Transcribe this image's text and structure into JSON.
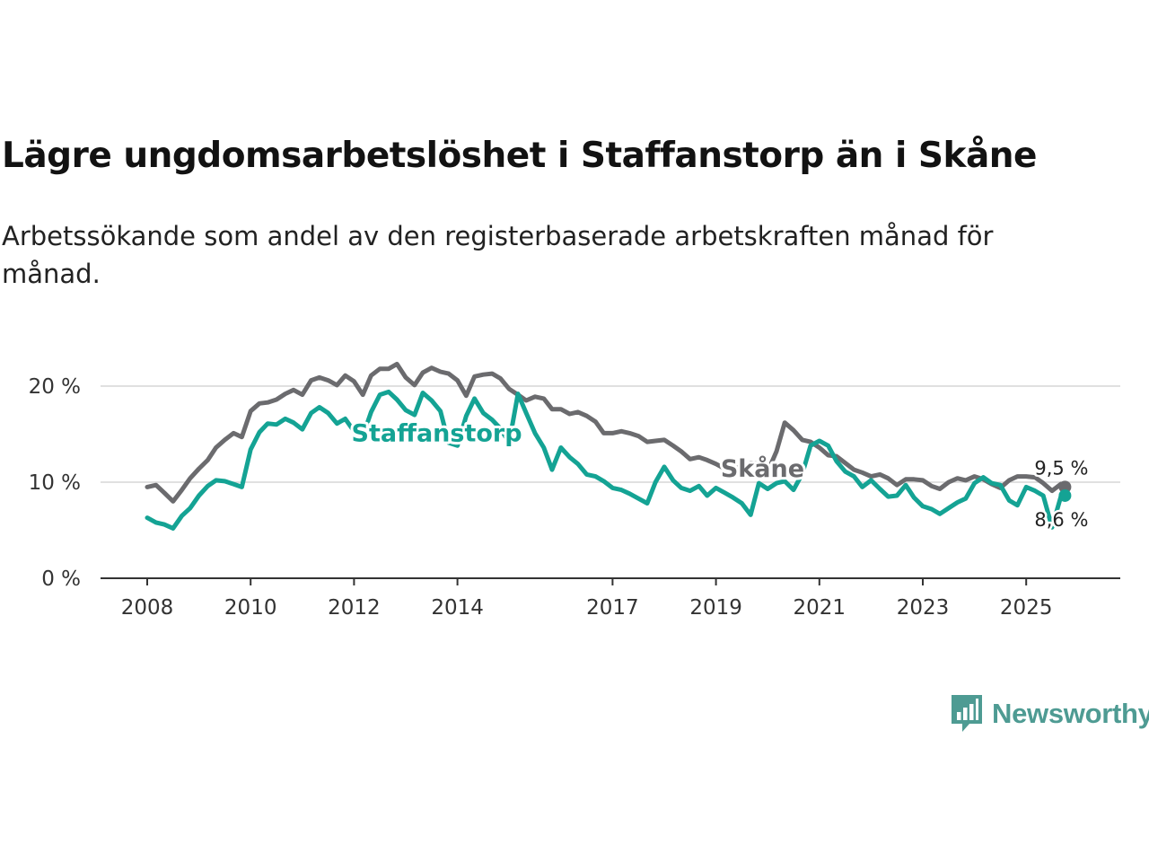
{
  "header": {
    "title": "Lägre ungdomsarbetslöshet i Staffanstorp än i Skåne",
    "subtitle": "Arbetssökande som andel av den registerbaserade arbetskraften månad för månad."
  },
  "brand": {
    "name": "Newsworthy",
    "icon": "bar-chart-speech-bubble-icon",
    "color": "#4e9b93"
  },
  "chart_data": {
    "type": "line",
    "title": "Lägre ungdomsarbetslöshet i Staffanstorp än i Skåne",
    "subtitle": "Arbetssökande som andel av den registerbaserade arbetskraften månad för månad.",
    "xlabel": "",
    "ylabel": "",
    "x_range": [
      2008.0,
      2025.75
    ],
    "ylim": [
      0,
      20
    ],
    "y_ticks": [
      {
        "value": 0,
        "label": "0 %"
      },
      {
        "value": 10,
        "label": "10 %"
      },
      {
        "value": 20,
        "label": "20 %"
      }
    ],
    "x_ticks": [
      {
        "value": 2008,
        "label": "2008"
      },
      {
        "value": 2010,
        "label": "2010"
      },
      {
        "value": 2012,
        "label": "2012"
      },
      {
        "value": 2014,
        "label": "2014"
      },
      {
        "value": 2017,
        "label": "2017"
      },
      {
        "value": 2019,
        "label": "2019"
      },
      {
        "value": 2021,
        "label": "2021"
      },
      {
        "value": 2023,
        "label": "2023"
      },
      {
        "value": 2025,
        "label": "2025"
      }
    ],
    "grid": true,
    "legend": "inline labels",
    "series": [
      {
        "name": "Skåne",
        "color": "#6b6b6e",
        "label_at": {
          "x": 2019.9,
          "y": 11.5
        },
        "end_label": "9,5 %",
        "end_label_position": "above",
        "points": [
          [
            2008.0,
            9.5
          ],
          [
            2008.17,
            9.7
          ],
          [
            2008.33,
            8.9
          ],
          [
            2008.5,
            8.0
          ],
          [
            2008.67,
            9.2
          ],
          [
            2008.83,
            10.4
          ],
          [
            2009.0,
            11.4
          ],
          [
            2009.17,
            12.3
          ],
          [
            2009.33,
            13.6
          ],
          [
            2009.5,
            14.4
          ],
          [
            2009.67,
            15.1
          ],
          [
            2009.83,
            14.7
          ],
          [
            2010.0,
            17.4
          ],
          [
            2010.17,
            18.2
          ],
          [
            2010.33,
            18.3
          ],
          [
            2010.5,
            18.6
          ],
          [
            2010.67,
            19.2
          ],
          [
            2010.83,
            19.6
          ],
          [
            2011.0,
            19.1
          ],
          [
            2011.17,
            20.6
          ],
          [
            2011.33,
            20.9
          ],
          [
            2011.5,
            20.6
          ],
          [
            2011.67,
            20.1
          ],
          [
            2011.83,
            21.1
          ],
          [
            2012.0,
            20.5
          ],
          [
            2012.17,
            19.1
          ],
          [
            2012.33,
            21.1
          ],
          [
            2012.5,
            21.8
          ],
          [
            2012.67,
            21.8
          ],
          [
            2012.83,
            22.3
          ],
          [
            2013.0,
            20.9
          ],
          [
            2013.17,
            20.1
          ],
          [
            2013.33,
            21.4
          ],
          [
            2013.5,
            21.9
          ],
          [
            2013.67,
            21.5
          ],
          [
            2013.83,
            21.3
          ],
          [
            2014.0,
            20.6
          ],
          [
            2014.17,
            19.0
          ],
          [
            2014.33,
            21.0
          ],
          [
            2014.5,
            21.2
          ],
          [
            2014.67,
            21.3
          ],
          [
            2014.83,
            20.8
          ],
          [
            2015.0,
            19.7
          ],
          [
            2015.17,
            19.1
          ],
          [
            2015.33,
            18.5
          ],
          [
            2015.5,
            18.9
          ],
          [
            2015.67,
            18.7
          ],
          [
            2015.83,
            17.6
          ],
          [
            2016.0,
            17.6
          ],
          [
            2016.17,
            17.1
          ],
          [
            2016.33,
            17.3
          ],
          [
            2016.5,
            16.9
          ],
          [
            2016.67,
            16.3
          ],
          [
            2016.83,
            15.1
          ],
          [
            2017.0,
            15.1
          ],
          [
            2017.17,
            15.3
          ],
          [
            2017.33,
            15.1
          ],
          [
            2017.5,
            14.8
          ],
          [
            2017.67,
            14.2
          ],
          [
            2017.83,
            14.3
          ],
          [
            2018.0,
            14.4
          ],
          [
            2018.17,
            13.8
          ],
          [
            2018.33,
            13.2
          ],
          [
            2018.5,
            12.4
          ],
          [
            2018.67,
            12.6
          ],
          [
            2018.83,
            12.3
          ],
          [
            2019.0,
            11.9
          ],
          [
            2019.17,
            11.4
          ],
          [
            2019.33,
            11.8
          ],
          [
            2019.5,
            11.4
          ],
          [
            2019.67,
            12.0
          ],
          [
            2019.83,
            11.9
          ],
          [
            2020.0,
            11.1
          ],
          [
            2020.17,
            13.2
          ],
          [
            2020.33,
            16.2
          ],
          [
            2020.5,
            15.4
          ],
          [
            2020.67,
            14.4
          ],
          [
            2020.83,
            14.2
          ],
          [
            2021.0,
            13.6
          ],
          [
            2021.17,
            12.8
          ],
          [
            2021.33,
            12.7
          ],
          [
            2021.5,
            12.0
          ],
          [
            2021.67,
            11.3
          ],
          [
            2021.83,
            11.0
          ],
          [
            2022.0,
            10.6
          ],
          [
            2022.17,
            10.8
          ],
          [
            2022.33,
            10.4
          ],
          [
            2022.5,
            9.7
          ],
          [
            2022.67,
            10.3
          ],
          [
            2022.83,
            10.3
          ],
          [
            2023.0,
            10.2
          ],
          [
            2023.17,
            9.6
          ],
          [
            2023.33,
            9.3
          ],
          [
            2023.5,
            10.0
          ],
          [
            2023.67,
            10.4
          ],
          [
            2023.83,
            10.2
          ],
          [
            2024.0,
            10.6
          ],
          [
            2024.17,
            10.3
          ],
          [
            2024.33,
            9.8
          ],
          [
            2024.5,
            9.4
          ],
          [
            2024.67,
            10.2
          ],
          [
            2024.83,
            10.6
          ],
          [
            2025.0,
            10.6
          ],
          [
            2025.17,
            10.5
          ],
          [
            2025.33,
            9.9
          ],
          [
            2025.5,
            9.1
          ],
          [
            2025.67,
            9.8
          ],
          [
            2025.75,
            9.5
          ]
        ]
      },
      {
        "name": "Staffanstorp",
        "color": "#14a394",
        "label_at": {
          "x": 2013.6,
          "y": 15.2
        },
        "end_label": "8,6 %",
        "end_label_position": "below",
        "points": [
          [
            2008.0,
            6.3
          ],
          [
            2008.17,
            5.8
          ],
          [
            2008.33,
            5.6
          ],
          [
            2008.5,
            5.2
          ],
          [
            2008.67,
            6.5
          ],
          [
            2008.83,
            7.3
          ],
          [
            2009.0,
            8.6
          ],
          [
            2009.17,
            9.6
          ],
          [
            2009.33,
            10.2
          ],
          [
            2009.5,
            10.1
          ],
          [
            2009.67,
            9.8
          ],
          [
            2009.83,
            9.5
          ],
          [
            2010.0,
            13.4
          ],
          [
            2010.17,
            15.2
          ],
          [
            2010.33,
            16.1
          ],
          [
            2010.5,
            16.0
          ],
          [
            2010.67,
            16.6
          ],
          [
            2010.83,
            16.2
          ],
          [
            2011.0,
            15.5
          ],
          [
            2011.17,
            17.2
          ],
          [
            2011.33,
            17.8
          ],
          [
            2011.5,
            17.2
          ],
          [
            2011.67,
            16.1
          ],
          [
            2011.83,
            16.6
          ],
          [
            2012.0,
            15.3
          ],
          [
            2012.17,
            14.8
          ],
          [
            2012.33,
            17.3
          ],
          [
            2012.5,
            19.1
          ],
          [
            2012.67,
            19.4
          ],
          [
            2012.83,
            18.6
          ],
          [
            2013.0,
            17.5
          ],
          [
            2013.17,
            17.0
          ],
          [
            2013.33,
            19.3
          ],
          [
            2013.5,
            18.5
          ],
          [
            2013.67,
            17.4
          ],
          [
            2013.83,
            14.1
          ],
          [
            2014.0,
            13.8
          ],
          [
            2014.17,
            16.9
          ],
          [
            2014.33,
            18.7
          ],
          [
            2014.5,
            17.2
          ],
          [
            2014.67,
            16.5
          ],
          [
            2014.83,
            15.6
          ],
          [
            2015.0,
            14.1
          ],
          [
            2015.17,
            19.2
          ],
          [
            2015.33,
            17.2
          ],
          [
            2015.5,
            15.1
          ],
          [
            2015.67,
            13.6
          ],
          [
            2015.83,
            11.3
          ],
          [
            2016.0,
            13.6
          ],
          [
            2016.17,
            12.6
          ],
          [
            2016.33,
            11.9
          ],
          [
            2016.5,
            10.8
          ],
          [
            2016.67,
            10.6
          ],
          [
            2016.83,
            10.1
          ],
          [
            2017.0,
            9.4
          ],
          [
            2017.17,
            9.2
          ],
          [
            2017.33,
            8.8
          ],
          [
            2017.5,
            8.3
          ],
          [
            2017.67,
            7.8
          ],
          [
            2017.83,
            10.0
          ],
          [
            2018.0,
            11.6
          ],
          [
            2018.17,
            10.2
          ],
          [
            2018.33,
            9.4
          ],
          [
            2018.5,
            9.1
          ],
          [
            2018.67,
            9.6
          ],
          [
            2018.83,
            8.6
          ],
          [
            2019.0,
            9.4
          ],
          [
            2019.17,
            8.9
          ],
          [
            2019.33,
            8.4
          ],
          [
            2019.5,
            7.8
          ],
          [
            2019.67,
            6.6
          ],
          [
            2019.83,
            9.9
          ],
          [
            2020.0,
            9.3
          ],
          [
            2020.17,
            9.9
          ],
          [
            2020.33,
            10.1
          ],
          [
            2020.5,
            9.2
          ],
          [
            2020.67,
            10.9
          ],
          [
            2020.83,
            13.8
          ],
          [
            2021.0,
            14.3
          ],
          [
            2021.17,
            13.8
          ],
          [
            2021.33,
            12.2
          ],
          [
            2021.5,
            11.1
          ],
          [
            2021.67,
            10.6
          ],
          [
            2021.83,
            9.5
          ],
          [
            2022.0,
            10.2
          ],
          [
            2022.17,
            9.3
          ],
          [
            2022.33,
            8.5
          ],
          [
            2022.5,
            8.6
          ],
          [
            2022.67,
            9.7
          ],
          [
            2022.83,
            8.4
          ],
          [
            2023.0,
            7.5
          ],
          [
            2023.17,
            7.2
          ],
          [
            2023.33,
            6.7
          ],
          [
            2023.5,
            7.3
          ],
          [
            2023.67,
            7.9
          ],
          [
            2023.83,
            8.3
          ],
          [
            2024.0,
            9.9
          ],
          [
            2024.17,
            10.5
          ],
          [
            2024.33,
            9.9
          ],
          [
            2024.5,
            9.7
          ],
          [
            2024.67,
            8.1
          ],
          [
            2024.83,
            7.6
          ],
          [
            2025.0,
            9.5
          ],
          [
            2025.17,
            9.1
          ],
          [
            2025.33,
            8.6
          ],
          [
            2025.5,
            5.3
          ],
          [
            2025.67,
            8.5
          ],
          [
            2025.75,
            8.6
          ]
        ]
      }
    ]
  }
}
